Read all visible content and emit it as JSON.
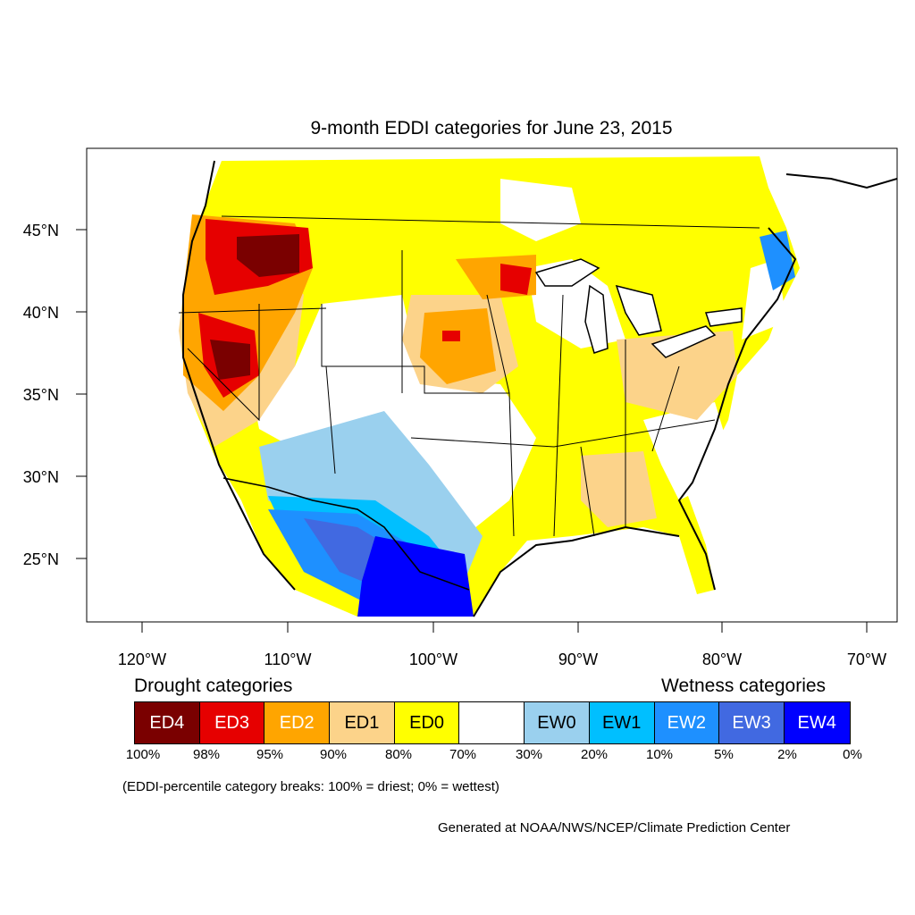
{
  "title": "9-month EDDI categories for June 23, 2015",
  "map": {
    "lat_labels": [
      "45°N",
      "40°N",
      "35°N",
      "30°N",
      "25°N"
    ],
    "lon_labels": [
      "120°W",
      "110°W",
      "100°W",
      "90°W",
      "80°W",
      "70°W"
    ],
    "colors": {
      "ED4": "#7a0000",
      "ED3": "#e60000",
      "ED2": "#ffa500",
      "ED1": "#fcd38a",
      "ED0": "#ffff00",
      "NEUTRAL": "#ffffff",
      "EW0": "#9ad0ee",
      "EW1": "#00bfff",
      "EW2": "#1e90ff",
      "EW3": "#4169e1",
      "EW4": "#0000ff"
    }
  },
  "legend": {
    "drought_heading": "Drought categories",
    "wetness_heading": "Wetness categories",
    "categories": [
      {
        "label": "ED4",
        "color": "#7a0000",
        "text_color": "#ffffff"
      },
      {
        "label": "ED3",
        "color": "#e60000",
        "text_color": "#ffffff"
      },
      {
        "label": "ED2",
        "color": "#ffa500",
        "text_color": "#ffffff"
      },
      {
        "label": "ED1",
        "color": "#fcd38a",
        "text_color": "#000000"
      },
      {
        "label": "ED0",
        "color": "#ffff00",
        "text_color": "#000000"
      },
      {
        "label": "",
        "color": "#ffffff",
        "text_color": "#000000"
      },
      {
        "label": "EW0",
        "color": "#9ad0ee",
        "text_color": "#000000"
      },
      {
        "label": "EW1",
        "color": "#00bfff",
        "text_color": "#000000"
      },
      {
        "label": "EW2",
        "color": "#1e90ff",
        "text_color": "#ffffff"
      },
      {
        "label": "EW3",
        "color": "#4169e1",
        "text_color": "#ffffff"
      },
      {
        "label": "EW4",
        "color": "#0000ff",
        "text_color": "#ffffff"
      }
    ],
    "breaks": [
      "100%",
      "98%",
      "95%",
      "90%",
      "80%",
      "70%",
      "30%",
      "20%",
      "10%",
      "5%",
      "2%",
      "0%"
    ]
  },
  "note": "(EDDI-percentile category breaks: 100% = driest; 0% = wettest)",
  "credit": "Generated at NOAA/NWS/NCEP/Climate Prediction Center"
}
